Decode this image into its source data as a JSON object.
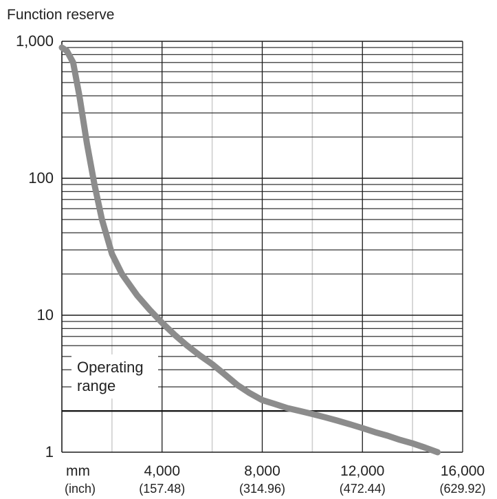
{
  "chart_data": {
    "type": "line",
    "title": "",
    "ylabel": "Function reserve",
    "xlabel": "",
    "x_unit_label": "mm",
    "x_unit_label_secondary": "(inch)",
    "x_scale": "linear",
    "y_scale": "log",
    "xlim": [
      0,
      16000
    ],
    "ylim": [
      1,
      1000
    ],
    "grid": true,
    "x_ticks": [
      {
        "value": 4000,
        "label": "4,000",
        "sublabel": "(157.48)"
      },
      {
        "value": 8000,
        "label": "8,000",
        "sublabel": "(314.96)"
      },
      {
        "value": 12000,
        "label": "12,000",
        "sublabel": "(472.44)"
      },
      {
        "value": 16000,
        "label": "16,000",
        "sublabel": "(629.92)"
      }
    ],
    "y_ticks": [
      {
        "value": 1,
        "label": "1"
      },
      {
        "value": 10,
        "label": "10"
      },
      {
        "value": 100,
        "label": "100"
      },
      {
        "value": 1000,
        "label": "1,000"
      }
    ],
    "annotation": {
      "lines": [
        "Operating",
        "range"
      ],
      "threshold": 2
    },
    "line_color": "#8c8c8c",
    "series": [
      {
        "x": [
          0,
          200,
          450,
          700,
          1000,
          1300,
          1600,
          2000,
          2400,
          3000,
          3500,
          4000,
          4500,
          5000,
          5500,
          6000,
          6500,
          7000,
          7500,
          8000,
          8500,
          9000,
          9500,
          10000,
          10500,
          11000,
          11500,
          12000,
          12500,
          13000,
          13500,
          14000,
          14500,
          15000
        ],
        "y": [
          900,
          850,
          700,
          400,
          180,
          90,
          50,
          28,
          20,
          14,
          11,
          8.8,
          7.2,
          6,
          5.1,
          4.4,
          3.7,
          3.1,
          2.7,
          2.4,
          2.25,
          2.1,
          2.0,
          1.9,
          1.8,
          1.7,
          1.6,
          1.5,
          1.4,
          1.32,
          1.23,
          1.16,
          1.08,
          1.0
        ]
      }
    ]
  }
}
